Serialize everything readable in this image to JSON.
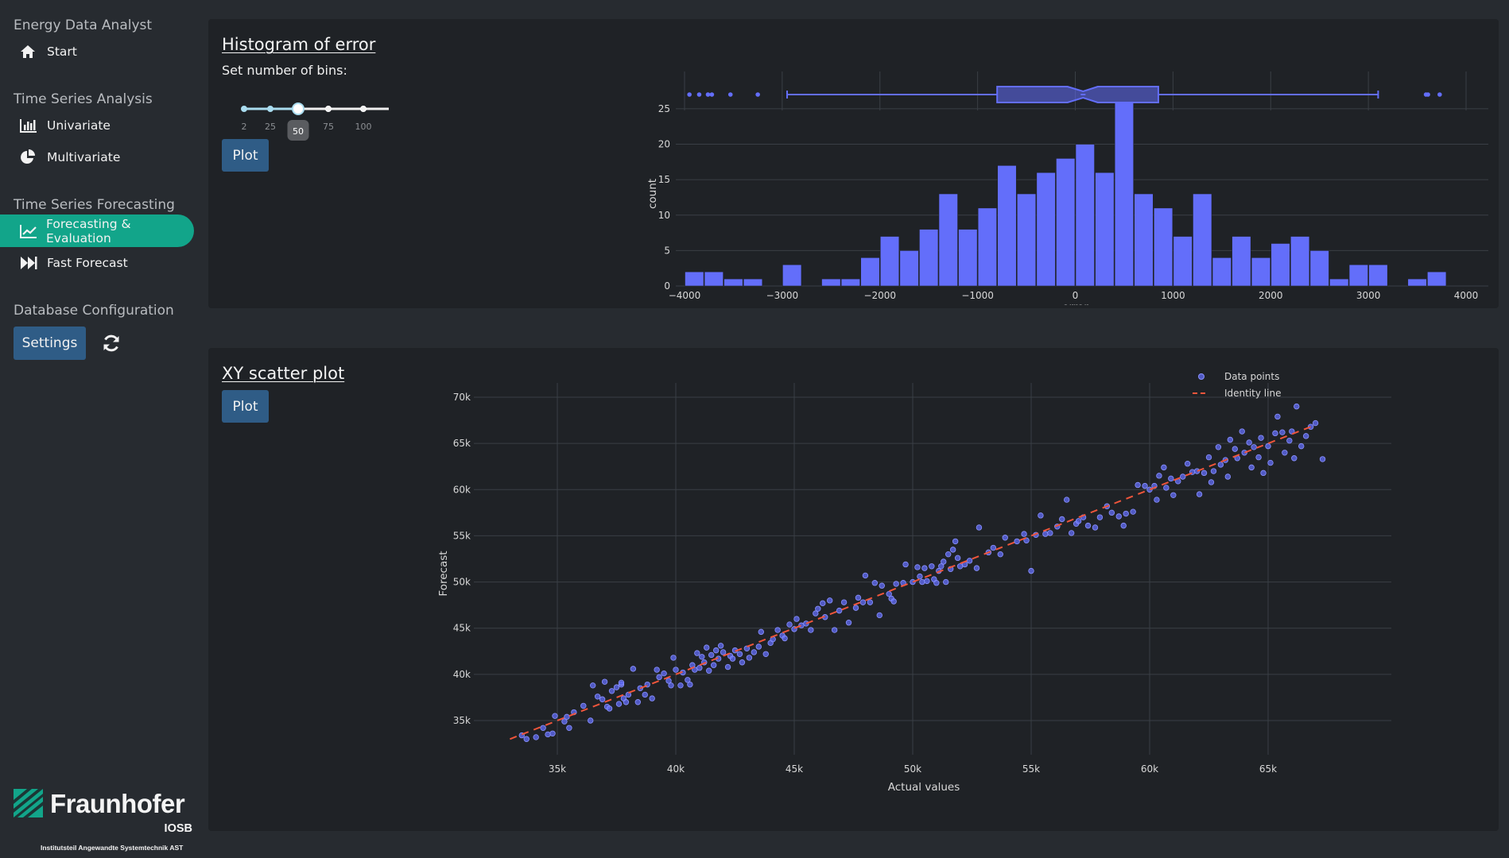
{
  "sidebar": {
    "app_title": "Energy Data Analyst",
    "start": "Start",
    "sections": {
      "analysis": "Time Series Analysis",
      "forecasting": "Time Series Forecasting",
      "database": "Database Configuration"
    },
    "items": {
      "univariate": "Univariate",
      "multivariate": "Multivariate",
      "forecasting_eval": "Forecasting & Evaluation",
      "fast_forecast": "Fast Forecast"
    },
    "active_item": "Forecasting & Evaluation",
    "settings_label": "Settings",
    "logo": {
      "name": "Fraunhofer",
      "unit": "IOSB",
      "institute": "Institutsteil Angewandte Systemtechnik AST"
    }
  },
  "histogram_card": {
    "title": "Histogram of error",
    "bins_label": "Set number of bins:",
    "slider": {
      "marks": [
        "2",
        "25",
        "50",
        "75",
        "100"
      ],
      "value": 50
    },
    "plot_label": "Plot"
  },
  "scatter_card": {
    "title": "XY scatter plot",
    "plot_label": "Plot"
  },
  "colors": {
    "accent": "#12a58a",
    "bar": "#636efa",
    "identity": "#ef553b",
    "button": "#2f5c86"
  },
  "chart_data": [
    {
      "type": "bar",
      "subtype": "histogram",
      "xlabel": "error",
      "ylabel": "count",
      "xlim": [
        -4000,
        4000
      ],
      "ylim": [
        0,
        26
      ],
      "x_ticks": [
        "−4000",
        "−3000",
        "−2000",
        "−1000",
        "0",
        "1000",
        "2000",
        "3000",
        "4000"
      ],
      "y_ticks": [
        "0",
        "5",
        "10",
        "15",
        "20",
        "25"
      ],
      "bin_start": -4000,
      "bin_width": 200,
      "counts": [
        2,
        2,
        1,
        1,
        0,
        3,
        0,
        1,
        1,
        4,
        7,
        5,
        8,
        13,
        8,
        11,
        17,
        13,
        16,
        18,
        20,
        16,
        26,
        13,
        11,
        7,
        13,
        4,
        7,
        4,
        6,
        7,
        5,
        1,
        3,
        3,
        0,
        1,
        2
      ],
      "grid": true,
      "marginal_box": {
        "q1": -800,
        "median": 80,
        "q3": 850,
        "notch_low": -80,
        "notch_high": 230,
        "whisker_low": -2950,
        "whisker_high": 3100,
        "outliers": [
          -3950,
          -3850,
          -3760,
          -3720,
          -3530,
          -3250,
          3590,
          3610,
          3730
        ]
      }
    },
    {
      "type": "scatter",
      "xlabel": "Actual values",
      "ylabel": "Forecast",
      "xlim": [
        32000,
        67500
      ],
      "ylim": [
        31500,
        71500
      ],
      "x_ticks": [
        "35k",
        "40k",
        "45k",
        "50k",
        "55k",
        "60k",
        "65k"
      ],
      "y_ticks": [
        "35k",
        "40k",
        "45k",
        "50k",
        "55k",
        "60k",
        "65k",
        "70k"
      ],
      "grid": true,
      "legend_position": "top-right",
      "series": [
        {
          "name": "Data points",
          "mode": "markers",
          "color": "#636efa"
        },
        {
          "name": "Identity line",
          "mode": "dashed-line",
          "color": "#ef553b",
          "points": [
            [
              33000,
              33000
            ],
            [
              67000,
              67000
            ]
          ]
        }
      ],
      "points": [
        [
          33500,
          33400
        ],
        [
          33700,
          33000
        ],
        [
          34100,
          33200
        ],
        [
          34400,
          34200
        ],
        [
          34600,
          33500
        ],
        [
          34800,
          33600
        ],
        [
          34900,
          35500
        ],
        [
          35300,
          34900
        ],
        [
          35500,
          34200
        ],
        [
          35400,
          35400
        ],
        [
          35700,
          35900
        ],
        [
          36100,
          36600
        ],
        [
          36400,
          35000
        ],
        [
          36500,
          38800
        ],
        [
          36700,
          37600
        ],
        [
          36900,
          37300
        ],
        [
          37000,
          39200
        ],
        [
          37100,
          36500
        ],
        [
          37200,
          36300
        ],
        [
          37300,
          38200
        ],
        [
          37500,
          38600
        ],
        [
          37600,
          36800
        ],
        [
          37700,
          38900
        ],
        [
          37800,
          37400
        ],
        [
          37900,
          37000
        ],
        [
          37700,
          39100
        ],
        [
          38000,
          37800
        ],
        [
          38200,
          40600
        ],
        [
          38400,
          37000
        ],
        [
          38500,
          38500
        ],
        [
          38700,
          37800
        ],
        [
          38800,
          38900
        ],
        [
          39000,
          37400
        ],
        [
          39200,
          40500
        ],
        [
          39300,
          39700
        ],
        [
          39500,
          40100
        ],
        [
          39700,
          39300
        ],
        [
          39900,
          41800
        ],
        [
          39800,
          38800
        ],
        [
          40000,
          40500
        ],
        [
          40200,
          38800
        ],
        [
          40300,
          40200
        ],
        [
          40500,
          39400
        ],
        [
          40600,
          38900
        ],
        [
          40700,
          41000
        ],
        [
          40800,
          40500
        ],
        [
          40900,
          42300
        ],
        [
          41000,
          40700
        ],
        [
          41100,
          41900
        ],
        [
          41200,
          41300
        ],
        [
          41300,
          42900
        ],
        [
          41400,
          40400
        ],
        [
          41500,
          42100
        ],
        [
          41600,
          41000
        ],
        [
          41700,
          42600
        ],
        [
          41800,
          41700
        ],
        [
          41900,
          43100
        ],
        [
          42000,
          42400
        ],
        [
          42200,
          40800
        ],
        [
          42300,
          42000
        ],
        [
          42400,
          41700
        ],
        [
          42500,
          42600
        ],
        [
          42700,
          42200
        ],
        [
          42800,
          41300
        ],
        [
          43000,
          42800
        ],
        [
          43100,
          41800
        ],
        [
          43300,
          42400
        ],
        [
          43500,
          43000
        ],
        [
          43600,
          44600
        ],
        [
          43800,
          42200
        ],
        [
          44000,
          43400
        ],
        [
          44100,
          43800
        ],
        [
          44300,
          44800
        ],
        [
          44500,
          44200
        ],
        [
          44600,
          43900
        ],
        [
          44800,
          45400
        ],
        [
          45000,
          44900
        ],
        [
          45100,
          46000
        ],
        [
          45300,
          45300
        ],
        [
          45500,
          45500
        ],
        [
          45700,
          44800
        ],
        [
          45900,
          46600
        ],
        [
          46000,
          47100
        ],
        [
          46200,
          47700
        ],
        [
          46300,
          46200
        ],
        [
          46500,
          48000
        ],
        [
          46700,
          44800
        ],
        [
          46900,
          46900
        ],
        [
          47100,
          47800
        ],
        [
          47300,
          45600
        ],
        [
          47600,
          47200
        ],
        [
          47700,
          48300
        ],
        [
          47900,
          47800
        ],
        [
          48000,
          50700
        ],
        [
          48200,
          47800
        ],
        [
          48400,
          49900
        ],
        [
          48600,
          46400
        ],
        [
          48700,
          49600
        ],
        [
          49000,
          48700
        ],
        [
          49100,
          48200
        ],
        [
          49200,
          47900
        ],
        [
          49300,
          49800
        ],
        [
          49600,
          49900
        ],
        [
          49700,
          51900
        ],
        [
          50000,
          50000
        ],
        [
          50200,
          51600
        ],
        [
          50300,
          50600
        ],
        [
          50400,
          50000
        ],
        [
          50500,
          51500
        ],
        [
          50600,
          50100
        ],
        [
          50800,
          51700
        ],
        [
          50900,
          50300
        ],
        [
          51000,
          49900
        ],
        [
          51100,
          51200
        ],
        [
          51200,
          51700
        ],
        [
          51300,
          52200
        ],
        [
          51400,
          50000
        ],
        [
          51500,
          53000
        ],
        [
          51600,
          51400
        ],
        [
          51700,
          53500
        ],
        [
          51800,
          54400
        ],
        [
          51900,
          52600
        ],
        [
          52000,
          51700
        ],
        [
          52200,
          51900
        ],
        [
          52400,
          52300
        ],
        [
          52700,
          51500
        ],
        [
          52800,
          55900
        ],
        [
          53200,
          53200
        ],
        [
          53400,
          53700
        ],
        [
          53700,
          53000
        ],
        [
          53900,
          54800
        ],
        [
          54400,
          54400
        ],
        [
          54700,
          55200
        ],
        [
          54800,
          54500
        ],
        [
          55000,
          51200
        ],
        [
          55200,
          55100
        ],
        [
          55400,
          57200
        ],
        [
          55600,
          55200
        ],
        [
          55800,
          55300
        ],
        [
          56100,
          56000
        ],
        [
          56300,
          56800
        ],
        [
          56500,
          58900
        ],
        [
          56700,
          55300
        ],
        [
          56900,
          56300
        ],
        [
          57000,
          56600
        ],
        [
          57200,
          57000
        ],
        [
          57400,
          56100
        ],
        [
          57700,
          55900
        ],
        [
          57900,
          57000
        ],
        [
          58200,
          58200
        ],
        [
          58400,
          57500
        ],
        [
          58700,
          57100
        ],
        [
          58900,
          56100
        ],
        [
          59000,
          57400
        ],
        [
          59300,
          57600
        ],
        [
          59500,
          60500
        ],
        [
          59800,
          60400
        ],
        [
          60000,
          60000
        ],
        [
          60200,
          60400
        ],
        [
          60300,
          58900
        ],
        [
          60400,
          61500
        ],
        [
          60600,
          62400
        ],
        [
          60700,
          60200
        ],
        [
          60900,
          61200
        ],
        [
          61000,
          59400
        ],
        [
          61200,
          60900
        ],
        [
          61400,
          61400
        ],
        [
          61600,
          62800
        ],
        [
          61800,
          61900
        ],
        [
          62000,
          62000
        ],
        [
          62100,
          59500
        ],
        [
          62300,
          61800
        ],
        [
          62500,
          63500
        ],
        [
          62600,
          60800
        ],
        [
          62700,
          62000
        ],
        [
          62900,
          64600
        ],
        [
          63000,
          62700
        ],
        [
          63200,
          63200
        ],
        [
          63300,
          61400
        ],
        [
          63400,
          65400
        ],
        [
          63600,
          64400
        ],
        [
          63700,
          63400
        ],
        [
          63900,
          66300
        ],
        [
          64000,
          64000
        ],
        [
          64200,
          65100
        ],
        [
          64300,
          62400
        ],
        [
          64400,
          64600
        ],
        [
          64600,
          63500
        ],
        [
          64700,
          65600
        ],
        [
          64800,
          61800
        ],
        [
          65000,
          64700
        ],
        [
          65100,
          62900
        ],
        [
          65300,
          66100
        ],
        [
          65400,
          67900
        ],
        [
          65600,
          66200
        ],
        [
          65700,
          64000
        ],
        [
          65900,
          65300
        ],
        [
          66000,
          66300
        ],
        [
          66100,
          63400
        ],
        [
          66200,
          69000
        ],
        [
          66400,
          64700
        ],
        [
          66600,
          65800
        ],
        [
          66800,
          66800
        ],
        [
          67000,
          67200
        ],
        [
          67300,
          63300
        ]
      ]
    }
  ]
}
